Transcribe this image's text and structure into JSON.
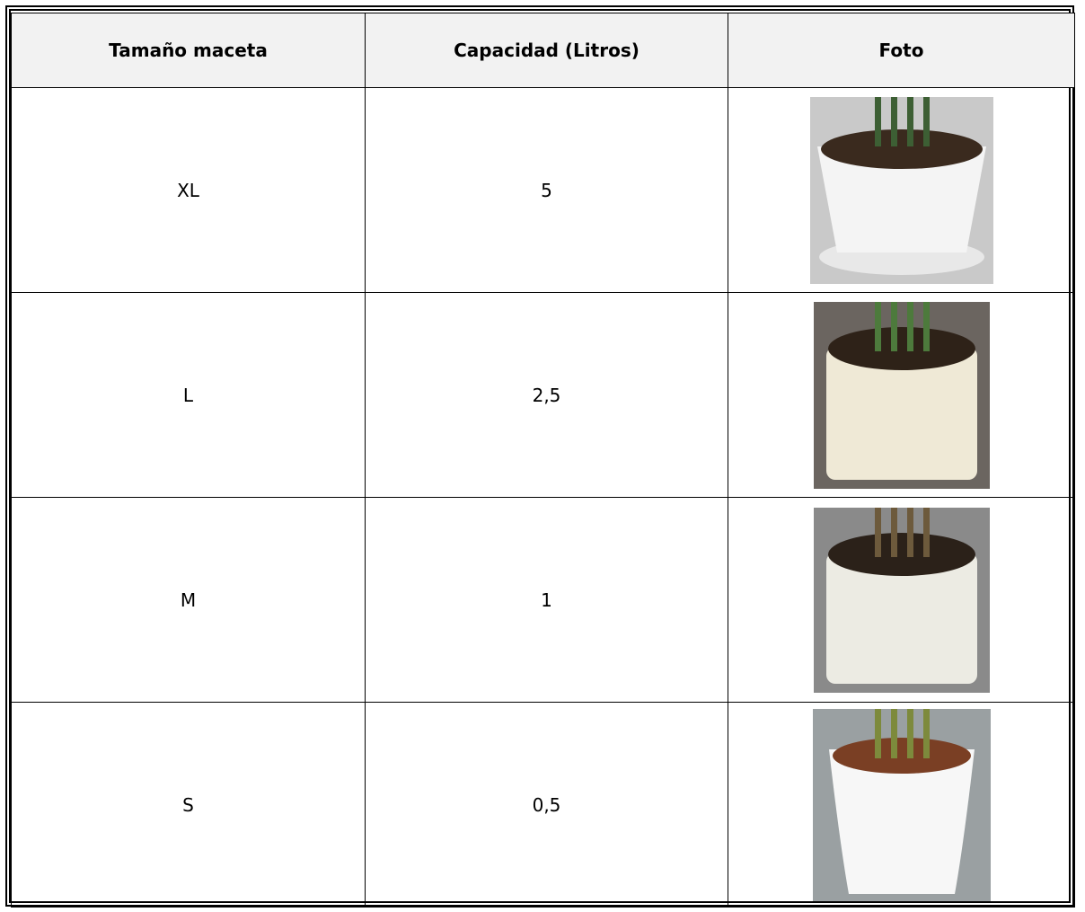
{
  "table": {
    "header": [
      "Tamaño maceta",
      "Capacidad (Litros)",
      "Foto"
    ],
    "rows": [
      [
        "XL",
        "5"
      ],
      [
        "L",
        "2,5"
      ],
      [
        "M",
        "1"
      ],
      [
        "S",
        "0,5"
      ]
    ]
  }
}
